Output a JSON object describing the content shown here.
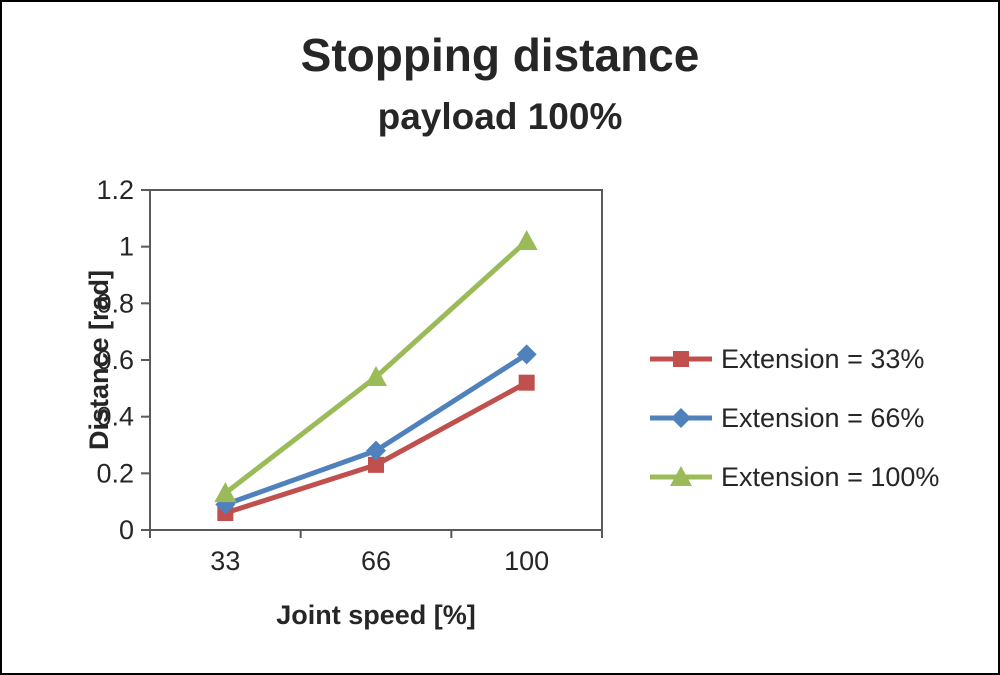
{
  "chart_data": {
    "type": "line",
    "title": "Stopping distance",
    "subtitle": "payload 100%",
    "xlabel": "Joint speed [%]",
    "ylabel": "Distance [rad]",
    "categories": [
      "33",
      "66",
      "100"
    ],
    "ylim": [
      0,
      1.2
    ],
    "ytick_step": 0.2,
    "ytick_labels": [
      "0",
      "0.2",
      "0.4",
      "0.6",
      "0.8",
      "1",
      "1.2"
    ],
    "grid": false,
    "legend_position": "right",
    "text_color": "#262626",
    "axis_color": "#595959",
    "series": [
      {
        "name": "Extension = 33%",
        "marker": "square",
        "color": "#c0504d",
        "values": [
          0.06,
          0.23,
          0.52
        ]
      },
      {
        "name": "Extension = 66%",
        "marker": "diamond",
        "color": "#4f81bd",
        "values": [
          0.09,
          0.28,
          0.62
        ]
      },
      {
        "name": "Extension = 100%",
        "marker": "triangle",
        "color": "#9bbb59",
        "values": [
          0.13,
          0.54,
          1.02
        ]
      }
    ]
  }
}
